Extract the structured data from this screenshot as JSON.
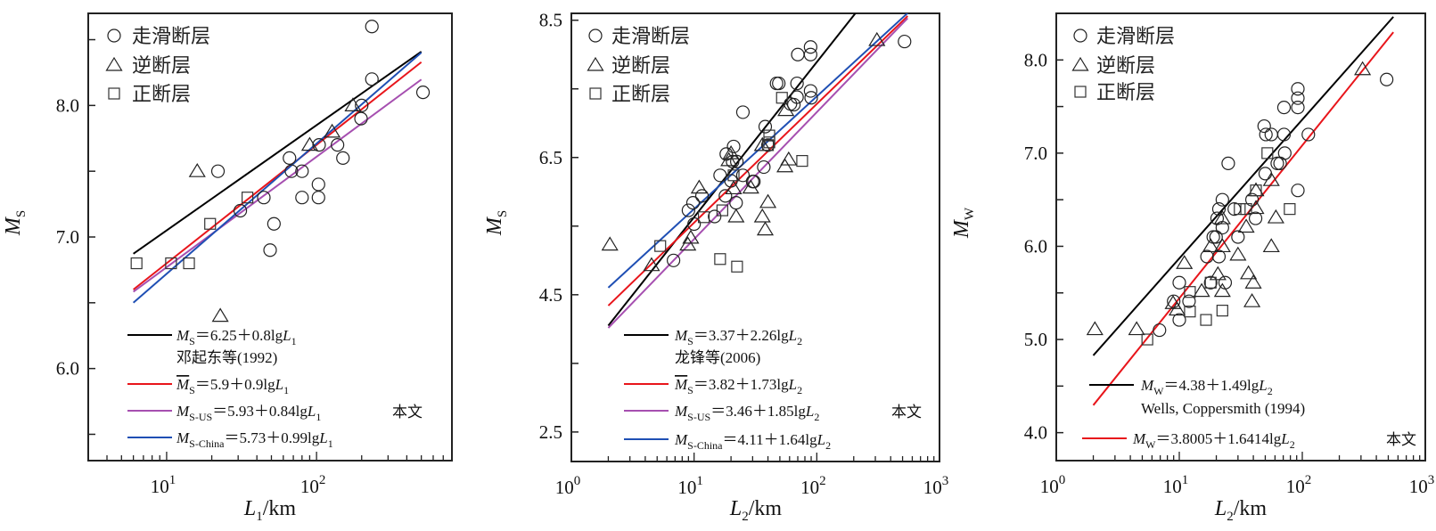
{
  "chart_data": [
    {
      "type": "scatter",
      "xscale": "log",
      "xlim": [
        3,
        800
      ],
      "ylim": [
        5.3,
        8.7
      ],
      "xlabel": {
        "var": "L",
        "sub": "1",
        "unit": "/km"
      },
      "ylabel": {
        "var": "M",
        "sub": "S"
      },
      "xticks": [
        {
          "value": 10,
          "label": "10^1"
        },
        {
          "value": 100,
          "label": "10^2"
        }
      ],
      "yticks": [
        {
          "value": 6.0,
          "label": "6.0"
        },
        {
          "value": 7.0,
          "label": "7.0"
        },
        {
          "value": 8.0,
          "label": "8.0"
        }
      ],
      "yminor_step": 0.5,
      "marker_legend": [
        "走滑断层",
        "逆断层",
        "正断层"
      ],
      "series": [
        {
          "name": "走滑断层",
          "marker": "circle",
          "points": [
            [
              234,
              8.6
            ],
            [
              234,
              8.2
            ],
            [
              513,
              8.1
            ],
            [
              200,
              8.0
            ],
            [
              198,
              7.9
            ],
            [
              104,
              7.7
            ],
            [
              138,
              7.7
            ],
            [
              150,
              7.6
            ],
            [
              66,
              7.6
            ],
            [
              68,
              7.5
            ],
            [
              80,
              7.5
            ],
            [
              22,
              7.5
            ],
            [
              103,
              7.4
            ],
            [
              80,
              7.3
            ],
            [
              103,
              7.3
            ],
            [
              44.5,
              7.3
            ],
            [
              31,
              7.2
            ],
            [
              52,
              7.1
            ],
            [
              49,
              6.9
            ]
          ]
        },
        {
          "name": "逆断层",
          "marker": "triangle",
          "points": [
            [
              16,
              7.5
            ],
            [
              22.8,
              6.4
            ],
            [
              90,
              7.7
            ],
            [
              127,
              7.8
            ],
            [
              175,
              8.0
            ]
          ]
        },
        {
          "name": "正断层",
          "marker": "square",
          "points": [
            [
              6.3,
              6.8
            ],
            [
              10.7,
              6.8
            ],
            [
              14.1,
              6.8
            ],
            [
              19.5,
              7.1
            ],
            [
              34.6,
              7.3
            ]
          ]
        }
      ],
      "lines": [
        {
          "color": "#000000",
          "a": 6.25,
          "b": 0.8,
          "range": [
            6,
            500
          ],
          "eq": {
            "m": "M",
            "bar": false,
            "sub": "S",
            "rhs": "＝6.25＋0.8lg",
            "v": "L",
            "vsub": "1"
          },
          "note": "邓起东等(1992)"
        },
        {
          "color": "#e8151b",
          "a": 5.9,
          "b": 0.9,
          "range": [
            6,
            500
          ],
          "eq": {
            "m": "M",
            "bar": true,
            "sub": "S",
            "rhs": "＝5.9＋0.9lg",
            "v": "L",
            "vsub": "1"
          }
        },
        {
          "color": "#a64fb0",
          "a": 5.93,
          "b": 0.84,
          "range": [
            6,
            500
          ],
          "eq": {
            "m": "M",
            "bar": false,
            "sub": "S-US",
            "rhs": "＝5.93＋0.84lg",
            "v": "L",
            "vsub": "1"
          }
        },
        {
          "color": "#1f4fb4",
          "a": 5.73,
          "b": 0.99,
          "range": [
            6,
            500
          ],
          "eq": {
            "m": "M",
            "bar": false,
            "sub": "S-China",
            "rhs": "＝5.73＋0.99lg",
            "v": "L",
            "vsub": "1"
          }
        }
      ],
      "this_paper_label": "本文"
    },
    {
      "type": "scatter",
      "xscale": "log",
      "xlim": [
        1,
        1000
      ],
      "ylim": [
        2.07,
        8.6
      ],
      "xlabel": {
        "var": "L",
        "sub": "2",
        "unit": "/km"
      },
      "ylabel": {
        "var": "M",
        "sub": "S"
      },
      "xticks": [
        {
          "value": 1,
          "label": "10^0"
        },
        {
          "value": 10,
          "label": "10^1"
        },
        {
          "value": 100,
          "label": "10^2"
        },
        {
          "value": 1000,
          "label": "10^3"
        }
      ],
      "yticks": [
        {
          "value": 2.5,
          "label": "2.5"
        },
        {
          "value": 4.5,
          "label": "4.5"
        },
        {
          "value": 6.5,
          "label": "6.5"
        },
        {
          "value": 8.5,
          "label": "8.5"
        }
      ],
      "yminor_step": 1.0,
      "marker_legend": [
        "走滑断层",
        "逆断层",
        "正断层"
      ],
      "series": [
        {
          "name": "走滑断层",
          "marker": "circle",
          "points": [
            [
              519,
              8.19
            ],
            [
              89,
              8.11
            ],
            [
              89,
              8.0
            ],
            [
              70,
              8.0
            ],
            [
              49,
              7.58
            ],
            [
              47,
              7.58
            ],
            [
              69,
              7.58
            ],
            [
              89,
              7.47
            ],
            [
              69,
              7.38
            ],
            [
              90,
              7.37
            ],
            [
              61,
              7.28
            ],
            [
              65,
              7.27
            ],
            [
              25,
              7.16
            ],
            [
              38,
              6.95
            ],
            [
              40,
              6.68
            ],
            [
              21,
              6.66
            ],
            [
              18.3,
              6.55
            ],
            [
              20.6,
              6.44
            ],
            [
              22.3,
              6.44
            ],
            [
              37,
              6.36
            ],
            [
              16.3,
              6.24
            ],
            [
              25,
              6.24
            ],
            [
              20,
              6.16
            ],
            [
              30,
              6.15
            ],
            [
              30.7,
              6.15
            ],
            [
              11.6,
              5.94
            ],
            [
              18,
              5.94
            ],
            [
              22,
              5.84
            ],
            [
              9.8,
              5.84
            ],
            [
              9.0,
              5.73
            ],
            [
              14.7,
              5.64
            ],
            [
              10,
              5.53
            ],
            [
              6.8,
              5.0
            ]
          ]
        },
        {
          "name": "逆断层",
          "marker": "triangle",
          "points": [
            [
              309,
              8.21
            ],
            [
              56,
              7.19
            ],
            [
              36,
              6.68
            ],
            [
              59,
              6.47
            ],
            [
              55,
              6.37
            ],
            [
              19.2,
              6.46
            ],
            [
              20,
              6.56
            ],
            [
              11,
              6.06
            ],
            [
              21,
              6.05
            ],
            [
              29,
              6.06
            ],
            [
              40,
              5.85
            ],
            [
              22,
              5.64
            ],
            [
              36,
              5.64
            ],
            [
              38,
              5.45
            ],
            [
              9.4,
              5.33
            ],
            [
              8.9,
              5.23
            ],
            [
              2.06,
              5.23
            ],
            [
              4.5,
              4.93
            ]
          ]
        },
        {
          "name": "正断层",
          "marker": "square",
          "points": [
            [
              52,
              7.37
            ],
            [
              41,
              6.82
            ],
            [
              41,
              6.72
            ],
            [
              40,
              6.68
            ],
            [
              76,
              6.45
            ],
            [
              21,
              6.24
            ],
            [
              17,
              5.73
            ],
            [
              12,
              5.63
            ],
            [
              5.3,
              5.21
            ],
            [
              16.3,
              5.02
            ],
            [
              22.4,
              4.91
            ]
          ]
        }
      ],
      "lines": [
        {
          "color": "#000000",
          "a": 3.37,
          "b": 2.26,
          "range": [
            2,
            550
          ],
          "eq": {
            "m": "M",
            "bar": false,
            "sub": "S",
            "rhs": "＝3.37＋2.26lg",
            "v": "L",
            "vsub": "2"
          },
          "note": "龙锋等(2006)"
        },
        {
          "color": "#e8151b",
          "a": 3.82,
          "b": 1.73,
          "range": [
            2,
            550
          ],
          "eq": {
            "m": "M",
            "bar": true,
            "sub": "S",
            "rhs": "＝3.82＋1.73lg",
            "v": "L",
            "vsub": "2"
          }
        },
        {
          "color": "#a64fb0",
          "a": 3.46,
          "b": 1.85,
          "range": [
            2,
            550
          ],
          "eq": {
            "m": "M",
            "bar": false,
            "sub": "S-US",
            "rhs": "＝3.46＋1.85lg",
            "v": "L",
            "vsub": "2"
          }
        },
        {
          "color": "#1f4fb4",
          "a": 4.11,
          "b": 1.64,
          "range": [
            2,
            550
          ],
          "eq": {
            "m": "M",
            "bar": false,
            "sub": "S-China",
            "rhs": "＝4.11＋1.64lg",
            "v": "L",
            "vsub": "2"
          }
        }
      ],
      "this_paper_label": "本文"
    },
    {
      "type": "scatter",
      "xscale": "log",
      "xlim": [
        1,
        1000
      ],
      "ylim": [
        3.7,
        8.5
      ],
      "xlabel": {
        "var": "L",
        "sub": "2",
        "unit": "/km"
      },
      "ylabel": {
        "var": "M",
        "sub": "W"
      },
      "xticks": [
        {
          "value": 1,
          "label": "10^0"
        },
        {
          "value": 10,
          "label": "10^1"
        },
        {
          "value": 100,
          "label": "10^2"
        },
        {
          "value": 1000,
          "label": "10^3"
        }
      ],
      "yticks": [
        {
          "value": 4.0,
          "label": "4.0"
        },
        {
          "value": 5.0,
          "label": "5.0"
        },
        {
          "value": 6.0,
          "label": "6.0"
        },
        {
          "value": 7.0,
          "label": "7.0"
        },
        {
          "value": 8.0,
          "label": "8.0"
        }
      ],
      "yminor_step": 0.5,
      "marker_legend": [
        "走滑断层",
        "逆断层",
        "正断层"
      ],
      "series": [
        {
          "name": "走滑断层",
          "marker": "circle",
          "points": [
            [
              485,
              7.79
            ],
            [
              92,
              7.69
            ],
            [
              92,
              7.59
            ],
            [
              92,
              7.49
            ],
            [
              71,
              7.49
            ],
            [
              49,
              7.29
            ],
            [
              50.6,
              7.2
            ],
            [
              56,
              7.2
            ],
            [
              71,
              7.2
            ],
            [
              112,
              7.2
            ],
            [
              72,
              7.0
            ],
            [
              25,
              6.89
            ],
            [
              62.6,
              6.89
            ],
            [
              66,
              6.89
            ],
            [
              50,
              6.78
            ],
            [
              92,
              6.6
            ],
            [
              22.4,
              6.5
            ],
            [
              39,
              6.5
            ],
            [
              21,
              6.4
            ],
            [
              28,
              6.4
            ],
            [
              20.3,
              6.3
            ],
            [
              41.7,
              6.3
            ],
            [
              22.4,
              6.2
            ],
            [
              18.9,
              6.1
            ],
            [
              19.9,
              6.1
            ],
            [
              30,
              6.1
            ],
            [
              16.8,
              5.89
            ],
            [
              21,
              5.89
            ],
            [
              10,
              5.61
            ],
            [
              18,
              5.61
            ],
            [
              23.6,
              5.61
            ],
            [
              9.0,
              5.41
            ],
            [
              12,
              5.41
            ],
            [
              10,
              5.21
            ],
            [
              6.9,
              5.1
            ]
          ]
        },
        {
          "name": "逆断层",
          "marker": "triangle",
          "points": [
            [
              309,
              7.9
            ],
            [
              56,
              6.71
            ],
            [
              42,
              6.6
            ],
            [
              42,
              6.41
            ],
            [
              61,
              6.31
            ],
            [
              35,
              6.21
            ],
            [
              22.4,
              6.3
            ],
            [
              22.4,
              6.0
            ],
            [
              18,
              6.0
            ],
            [
              56,
              6.0
            ],
            [
              30,
              5.91
            ],
            [
              11,
              5.82
            ],
            [
              20.6,
              5.7
            ],
            [
              36.5,
              5.71
            ],
            [
              40,
              5.61
            ],
            [
              15.2,
              5.52
            ],
            [
              22.4,
              5.52
            ],
            [
              39,
              5.41
            ],
            [
              8.9,
              5.39
            ],
            [
              9.6,
              5.32
            ],
            [
              4.5,
              5.11
            ],
            [
              2.06,
              5.11
            ]
          ]
        },
        {
          "name": "正断层",
          "marker": "square",
          "points": [
            [
              52,
              7.0
            ],
            [
              42,
              6.6
            ],
            [
              79,
              6.4
            ],
            [
              31,
              6.4
            ],
            [
              35,
              6.4
            ],
            [
              18,
              5.61
            ],
            [
              12.2,
              5.51
            ],
            [
              12.2,
              5.3
            ],
            [
              22.4,
              5.31
            ],
            [
              16.5,
              5.21
            ],
            [
              5.5,
              5.0
            ]
          ]
        }
      ],
      "lines": [
        {
          "color": "#000000",
          "a": 4.38,
          "b": 1.49,
          "range": [
            2,
            550
          ],
          "eq": {
            "m": "M",
            "bar": false,
            "sub": "W",
            "rhs": "＝4.38＋1.49lg",
            "v": "L",
            "vsub": "2"
          },
          "note": "Wells, Coppersmith (1994)"
        },
        {
          "color": "#e8151b",
          "a": 3.8005,
          "b": 1.6414,
          "range": [
            2,
            550
          ],
          "eq": {
            "m": "M",
            "bar": false,
            "sub": "W",
            "rhs": "＝3.8005＋1.6414lg",
            "v": "L",
            "vsub": "2"
          }
        }
      ],
      "this_paper_label": "本文"
    }
  ]
}
